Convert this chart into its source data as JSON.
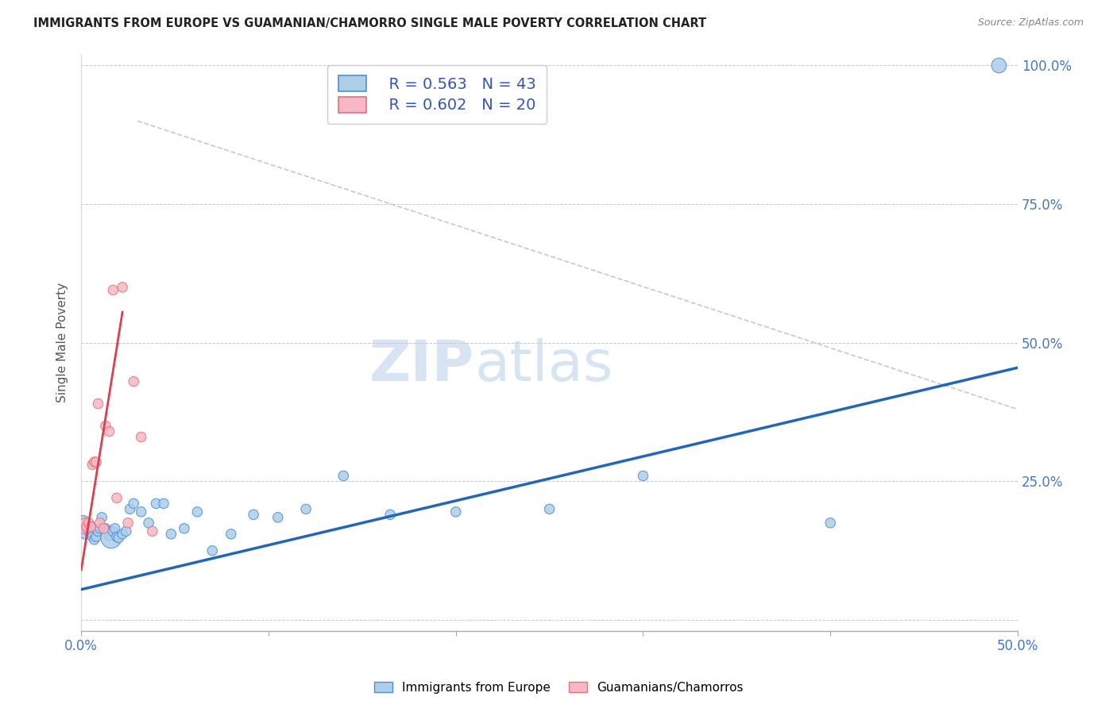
{
  "title": "IMMIGRANTS FROM EUROPE VS GUAMANIAN/CHAMORRO SINGLE MALE POVERTY CORRELATION CHART",
  "source": "Source: ZipAtlas.com",
  "ylabel": "Single Male Poverty",
  "xlim": [
    0.0,
    0.5
  ],
  "ylim": [
    -0.02,
    1.02
  ],
  "blue_R": "R = 0.563",
  "blue_N": "N = 43",
  "pink_R": "R = 0.602",
  "pink_N": "N = 20",
  "blue_color": "#aecde8",
  "pink_color": "#f5b8c4",
  "blue_edge_color": "#4a90d9",
  "pink_edge_color": "#e8707a",
  "blue_line_color": "#2266bb",
  "pink_line_color": "#d94050",
  "gray_line_color": "#c8c8c8",
  "background_color": "#ffffff",
  "blue_scatter_x": [
    0.001,
    0.002,
    0.003,
    0.004,
    0.005,
    0.006,
    0.007,
    0.008,
    0.009,
    0.01,
    0.011,
    0.012,
    0.013,
    0.014,
    0.015,
    0.016,
    0.017,
    0.018,
    0.019,
    0.02,
    0.022,
    0.024,
    0.026,
    0.028,
    0.032,
    0.036,
    0.04,
    0.044,
    0.048,
    0.055,
    0.062,
    0.07,
    0.08,
    0.092,
    0.105,
    0.12,
    0.14,
    0.165,
    0.2,
    0.25,
    0.3,
    0.4,
    0.49
  ],
  "blue_scatter_y": [
    0.175,
    0.155,
    0.165,
    0.16,
    0.17,
    0.15,
    0.145,
    0.15,
    0.16,
    0.165,
    0.185,
    0.165,
    0.165,
    0.16,
    0.152,
    0.148,
    0.16,
    0.165,
    0.15,
    0.148,
    0.155,
    0.16,
    0.2,
    0.21,
    0.195,
    0.175,
    0.21,
    0.21,
    0.155,
    0.165,
    0.195,
    0.125,
    0.155,
    0.19,
    0.185,
    0.2,
    0.26,
    0.19,
    0.195,
    0.2,
    0.26,
    0.175,
    1.0
  ],
  "blue_scatter_s": [
    180,
    80,
    80,
    80,
    80,
    80,
    80,
    80,
    80,
    80,
    80,
    80,
    80,
    80,
    80,
    350,
    80,
    80,
    80,
    80,
    80,
    80,
    80,
    80,
    80,
    80,
    80,
    80,
    80,
    80,
    80,
    80,
    80,
    80,
    80,
    80,
    80,
    80,
    80,
    80,
    80,
    80,
    180
  ],
  "pink_scatter_x": [
    0.001,
    0.002,
    0.003,
    0.004,
    0.005,
    0.006,
    0.007,
    0.008,
    0.009,
    0.01,
    0.012,
    0.013,
    0.015,
    0.017,
    0.019,
    0.022,
    0.025,
    0.028,
    0.032,
    0.038
  ],
  "pink_scatter_y": [
    0.165,
    0.175,
    0.168,
    0.175,
    0.168,
    0.28,
    0.285,
    0.285,
    0.39,
    0.175,
    0.165,
    0.35,
    0.34,
    0.595,
    0.22,
    0.6,
    0.175,
    0.43,
    0.33,
    0.16
  ],
  "pink_scatter_s": [
    80,
    80,
    80,
    80,
    80,
    80,
    80,
    80,
    80,
    80,
    80,
    80,
    80,
    80,
    80,
    80,
    80,
    80,
    80,
    80
  ],
  "blue_trend_x": [
    0.0,
    0.5
  ],
  "blue_trend_y": [
    0.055,
    0.455
  ],
  "pink_trend_x": [
    0.0,
    0.022
  ],
  "pink_trend_y": [
    0.09,
    0.555
  ],
  "gray_trend_x": [
    0.03,
    0.5
  ],
  "gray_trend_y": [
    0.9,
    0.38
  ]
}
